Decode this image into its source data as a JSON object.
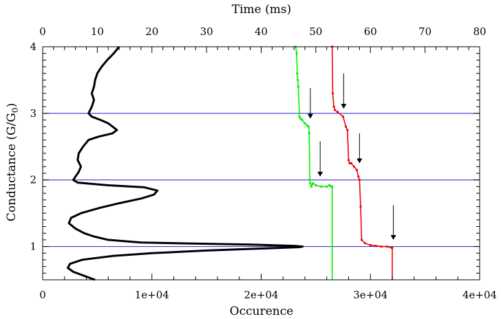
{
  "chart_data": {
    "type": "line",
    "xlabel": "Occurence",
    "x2label": "Time (ms)",
    "ylabel": "Conductance (G/G",
    "ylabel_sub": "0",
    "ylabel_end": ")",
    "xlim": [
      0,
      40000
    ],
    "x2lim": [
      0,
      80
    ],
    "ylim": [
      0.5,
      4
    ],
    "xticks": [
      0,
      10000,
      20000,
      30000,
      40000
    ],
    "xtick_labels": [
      "0",
      "1e+04",
      "2e+04",
      "3e+04",
      "4e+04"
    ],
    "x2ticks": [
      0,
      10,
      20,
      30,
      40,
      50,
      60,
      70,
      80
    ],
    "x2tick_labels": [
      "0",
      "10",
      "20",
      "30",
      "40",
      "50",
      "60",
      "70",
      "80"
    ],
    "yticks": [
      1,
      2,
      3,
      4
    ],
    "ytick_labels": [
      "1",
      "2",
      "3",
      "4"
    ],
    "reference_lines": [
      1,
      2,
      3
    ],
    "colors": {
      "histogram": "#000000",
      "trace1": "#00ee00",
      "trace2": "#ee0000",
      "reference": "#2222cc"
    },
    "histogram": {
      "axis": "bottom",
      "y": [
        0.5,
        0.56,
        0.62,
        0.68,
        0.74,
        0.8,
        0.86,
        0.9,
        0.94,
        0.97,
        0.99,
        1.0,
        1.01,
        1.03,
        1.06,
        1.1,
        1.15,
        1.2,
        1.27,
        1.35,
        1.43,
        1.5,
        1.58,
        1.65,
        1.72,
        1.78,
        1.84,
        1.89,
        1.92,
        1.96,
        2.0,
        2.05,
        2.12,
        2.2,
        2.3,
        2.4,
        2.5,
        2.6,
        2.65,
        2.7,
        2.75,
        2.8,
        2.85,
        2.9,
        2.95,
        3.0,
        3.1,
        3.2,
        3.3,
        3.4,
        3.5,
        3.6,
        3.7,
        3.8,
        3.9,
        4.0
      ],
      "x": [
        4800,
        3800,
        2800,
        2300,
        2500,
        3600,
        6500,
        10000,
        15000,
        20000,
        23500,
        23800,
        23000,
        19000,
        9000,
        6000,
        4700,
        3800,
        3000,
        2400,
        2600,
        3500,
        5200,
        7000,
        9000,
        10200,
        10500,
        9300,
        6000,
        3200,
        2800,
        3000,
        3300,
        3500,
        3200,
        3300,
        3700,
        4200,
        5100,
        6400,
        6800,
        6400,
        6000,
        5300,
        4500,
        4200,
        4500,
        4700,
        4500,
        4700,
        4800,
        5000,
        5400,
        5900,
        6500,
        7000
      ]
    },
    "traces": [
      {
        "axis": "top",
        "x": [
          46.3,
          46.5,
          46.6,
          46.7,
          46.8,
          47.0,
          47.2,
          47.5,
          48.0,
          48.4,
          48.7,
          48.8,
          48.9,
          49.0,
          49.2,
          49.5,
          50.0,
          51.0,
          52.0,
          52.5,
          52.8,
          53.0,
          53.0
        ],
        "y": [
          4.0,
          3.9,
          3.6,
          3.5,
          3.4,
          2.95,
          2.92,
          2.9,
          2.85,
          2.82,
          2.8,
          2.7,
          2.0,
          1.95,
          1.9,
          1.95,
          1.92,
          1.9,
          1.9,
          1.92,
          1.9,
          1.9,
          0.5
        ]
      },
      {
        "axis": "top",
        "x": [
          53.0,
          53.1,
          53.3,
          53.5,
          54.0,
          55.0,
          55.5,
          55.8,
          56.0,
          56.2,
          56.5,
          57.0,
          57.5,
          57.8,
          58.0,
          58.2,
          58.4,
          59.0,
          60.0,
          61.0,
          62.0,
          63.0,
          63.9,
          64.0,
          64.0
        ],
        "y": [
          4.0,
          3.3,
          3.1,
          3.05,
          3.02,
          2.95,
          2.8,
          2.75,
          2.3,
          2.25,
          2.25,
          2.2,
          2.15,
          2.05,
          2.0,
          1.6,
          1.1,
          1.05,
          1.02,
          1.01,
          1.0,
          1.0,
          0.98,
          0.98,
          0.5
        ]
      }
    ],
    "arrows": [
      {
        "x": 49.0,
        "y_start": 3.38,
        "y_end": 2.92
      },
      {
        "x": 55.1,
        "y_start": 3.6,
        "y_end": 3.07
      },
      {
        "x": 50.8,
        "y_start": 2.58,
        "y_end": 2.05
      },
      {
        "x": 58.0,
        "y_start": 2.7,
        "y_end": 2.25
      },
      {
        "x": 64.2,
        "y_start": 1.62,
        "y_end": 1.1
      }
    ]
  }
}
